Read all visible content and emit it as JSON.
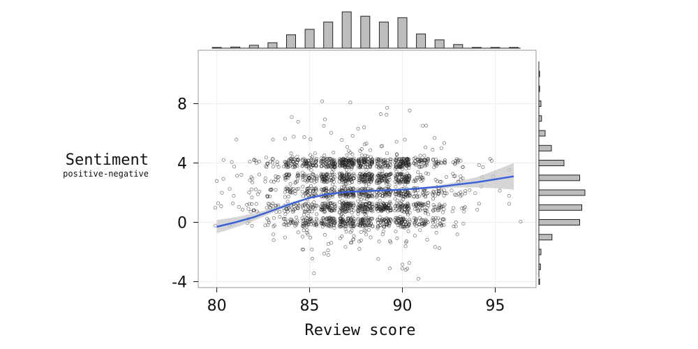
{
  "chart_data": {
    "type": "scatter",
    "title": "",
    "xlabel": "Review score",
    "ylabel": "Sentiment",
    "ylabel_sub": "positive-negative",
    "xlim": [
      79,
      97.2
    ],
    "ylim": [
      -4.4,
      11.6
    ],
    "x_ticks": [
      80,
      85,
      90,
      95
    ],
    "y_ticks": [
      -4,
      0,
      4,
      8
    ],
    "grid": true,
    "colors": {
      "points": "#222222",
      "smooth_line": "#3b63d8",
      "confidence_band": "#c8c8c8",
      "histogram_bars": "#bdbdbd",
      "panel_border": "#999999"
    },
    "points_description": "jittered review points, approx. 2500, concentrated at scores 84-92 and sentiment -1 to 5",
    "smooth_curve": {
      "x": [
        80,
        81,
        82,
        83,
        84,
        85,
        86,
        87,
        88,
        89,
        90,
        91,
        92,
        93,
        94,
        95,
        96
      ],
      "y": [
        -0.3,
        0.0,
        0.35,
        0.8,
        1.25,
        1.65,
        1.9,
        2.05,
        2.1,
        2.15,
        2.2,
        2.3,
        2.4,
        2.55,
        2.7,
        2.9,
        3.1
      ],
      "band_halfwidth": [
        0.45,
        0.35,
        0.25,
        0.15,
        0.08,
        0.06,
        0.05,
        0.05,
        0.05,
        0.05,
        0.05,
        0.06,
        0.1,
        0.2,
        0.35,
        0.6,
        0.9
      ]
    },
    "x_histogram": {
      "bin_centers": [
        80,
        81,
        82,
        83,
        84,
        85,
        86,
        87,
        88,
        89,
        90,
        91,
        92,
        93,
        94,
        95,
        96
      ],
      "relative_heights": [
        0.02,
        0.03,
        0.08,
        0.15,
        0.37,
        0.52,
        0.72,
        1.0,
        0.88,
        0.72,
        0.84,
        0.39,
        0.23,
        0.1,
        0.02,
        0.01,
        0.01
      ]
    },
    "y_histogram": {
      "bin_centers": [
        -4,
        -3,
        -2,
        -1,
        0,
        1,
        2,
        3,
        4,
        5,
        6,
        7,
        8,
        9,
        10,
        11
      ],
      "relative_heights": [
        0.01,
        0.03,
        0.04,
        0.25,
        0.78,
        0.82,
        0.88,
        0.78,
        0.48,
        0.24,
        0.12,
        0.05,
        0.04,
        0.01,
        0.01,
        0.0
      ]
    }
  }
}
